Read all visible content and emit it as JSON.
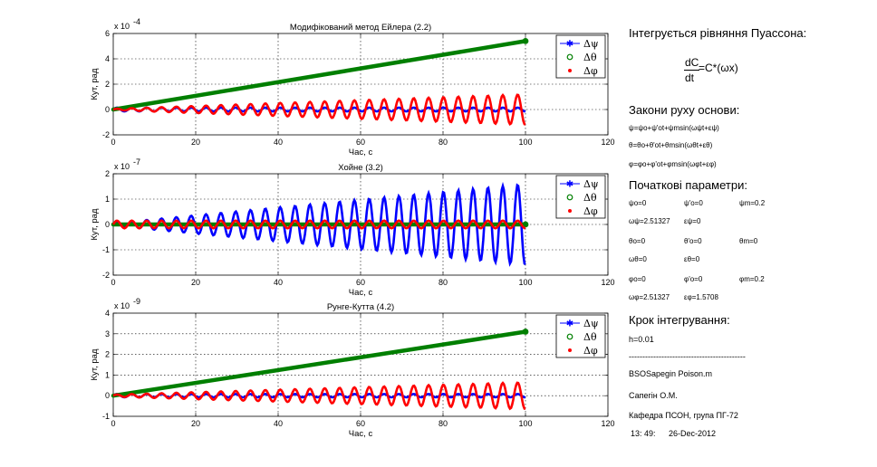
{
  "colors": {
    "psi": "#0000ff",
    "theta": "#007f00",
    "phi": "#ff0000"
  },
  "chart_data": [
    {
      "type": "line",
      "title": "Модифікований метод Ейлера (2.2)",
      "xlabel": "Час, с",
      "ylabel": "Кут, рад",
      "exponent_base": "x 10",
      "exponent_power": "-4",
      "xlim": [
        0,
        120
      ],
      "ylim": [
        -2,
        6
      ],
      "xticks": [
        "0",
        "20",
        "40",
        "60",
        "80",
        "100",
        "120"
      ],
      "yticks": [
        "-2",
        "0",
        "2",
        "4",
        "6"
      ],
      "grid": true,
      "legend_position": "top-right",
      "legend": [
        "Δψ",
        "Δθ",
        "Δφ"
      ],
      "series": [
        {
          "name": "Δψ",
          "x": [
            0,
            100
          ],
          "y_mean": [
            0,
            0
          ],
          "amplitude": [
            0.15,
            0.15
          ],
          "oscillation_period_s": 3.6
        },
        {
          "name": "Δθ",
          "x": [
            0,
            100
          ],
          "y": [
            0.0,
            5.4
          ]
        },
        {
          "name": "Δφ",
          "x": [
            0,
            100
          ],
          "y_mean": [
            0,
            0
          ],
          "amplitude": [
            0.05,
            1.2
          ],
          "oscillation_period_s": 3.6
        }
      ]
    },
    {
      "type": "line",
      "title": "Хойне (3.2)",
      "xlabel": "Час, с",
      "ylabel": "Кут, рад",
      "exponent_base": "x 10",
      "exponent_power": "-7",
      "xlim": [
        0,
        120
      ],
      "ylim": [
        -2,
        2
      ],
      "xticks": [
        "0",
        "20",
        "40",
        "60",
        "80",
        "100",
        "120"
      ],
      "yticks": [
        "-2",
        "-1",
        "0",
        "1",
        "2"
      ],
      "grid": true,
      "legend_position": "top-right",
      "legend": [
        "Δψ",
        "Δθ",
        "Δφ"
      ],
      "series": [
        {
          "name": "Δψ",
          "x": [
            0,
            100
          ],
          "y_mean": [
            0,
            0
          ],
          "amplitude": [
            0.05,
            1.6
          ],
          "oscillation_period_s": 3.6
        },
        {
          "name": "Δθ",
          "x": [
            0,
            100
          ],
          "y": [
            0,
            0
          ]
        },
        {
          "name": "Δφ",
          "x": [
            0,
            100
          ],
          "y_mean": [
            0,
            0
          ],
          "amplitude": [
            0.15,
            0.15
          ],
          "oscillation_period_s": 3.6
        }
      ]
    },
    {
      "type": "line",
      "title": "Рунге-Кутта (4.2)",
      "xlabel": "Час, с",
      "ylabel": "Кут, рад",
      "exponent_base": "x 10",
      "exponent_power": "-9",
      "xlim": [
        0,
        120
      ],
      "ylim": [
        -1,
        4
      ],
      "xticks": [
        "0",
        "20",
        "40",
        "60",
        "80",
        "100",
        "120"
      ],
      "yticks": [
        "-1",
        "0",
        "1",
        "2",
        "3",
        "4"
      ],
      "grid": true,
      "legend_position": "top-right",
      "legend": [
        "Δψ",
        "Δθ",
        "Δφ"
      ],
      "series": [
        {
          "name": "Δψ",
          "x": [
            0,
            100
          ],
          "y_mean": [
            0,
            0
          ],
          "amplitude": [
            0.08,
            0.08
          ],
          "oscillation_period_s": 3.6
        },
        {
          "name": "Δθ",
          "x": [
            0,
            100
          ],
          "y": [
            0.0,
            3.1
          ]
        },
        {
          "name": "Δφ",
          "x": [
            0,
            100
          ],
          "y_mean": [
            0,
            0
          ],
          "amplitude": [
            0.05,
            0.65
          ],
          "oscillation_period_s": 3.6
        }
      ]
    }
  ],
  "notes": {
    "heading_equation": "Інтегрується рівняння Пуассона:",
    "eq_num": "dC",
    "eq_den": "dt",
    "eq_rhs": "=C*(ωx)",
    "heading_laws": "Закони руху основи:",
    "law_psi": "ψ=ψo+ψ'ot+ψmsin(ωψt+εψ)",
    "law_theta": "θ=θo+θ'ot+θmsin(ωθt+εθ)",
    "law_phi": "φ=φo+φ'ot+φmsin(ωφt+εφ)",
    "heading_params": "Початкові параметри:",
    "p_psi0": "ψo=0",
    "p_psi1": "ψ'o=0",
    "p_psim": "ψm=0.2",
    "p_wpsi": "ωψ=2.51327",
    "p_epsi": "εψ=0",
    "p_th0": "θo=0",
    "p_th1": "θ'o=0",
    "p_thm": "θm=0",
    "p_wth": "ωθ=0",
    "p_eth": "εθ=0",
    "p_ph0": "φo=0",
    "p_ph1": "φ'o=0",
    "p_phm": "φm=0.2",
    "p_wph": "ωφ=2.51327",
    "p_eph": "εφ=1.5708",
    "heading_step": "Крок інтегрування:",
    "step": "h=0.01",
    "separator": "-------------------------------------------",
    "file": "BSOSapegin Poison.m",
    "author": "Сапегін О.М.",
    "dept": "Кафедра ПСОН, група ПГ-72",
    "time": "13: 49:",
    "date": "26-Dec-2012"
  }
}
